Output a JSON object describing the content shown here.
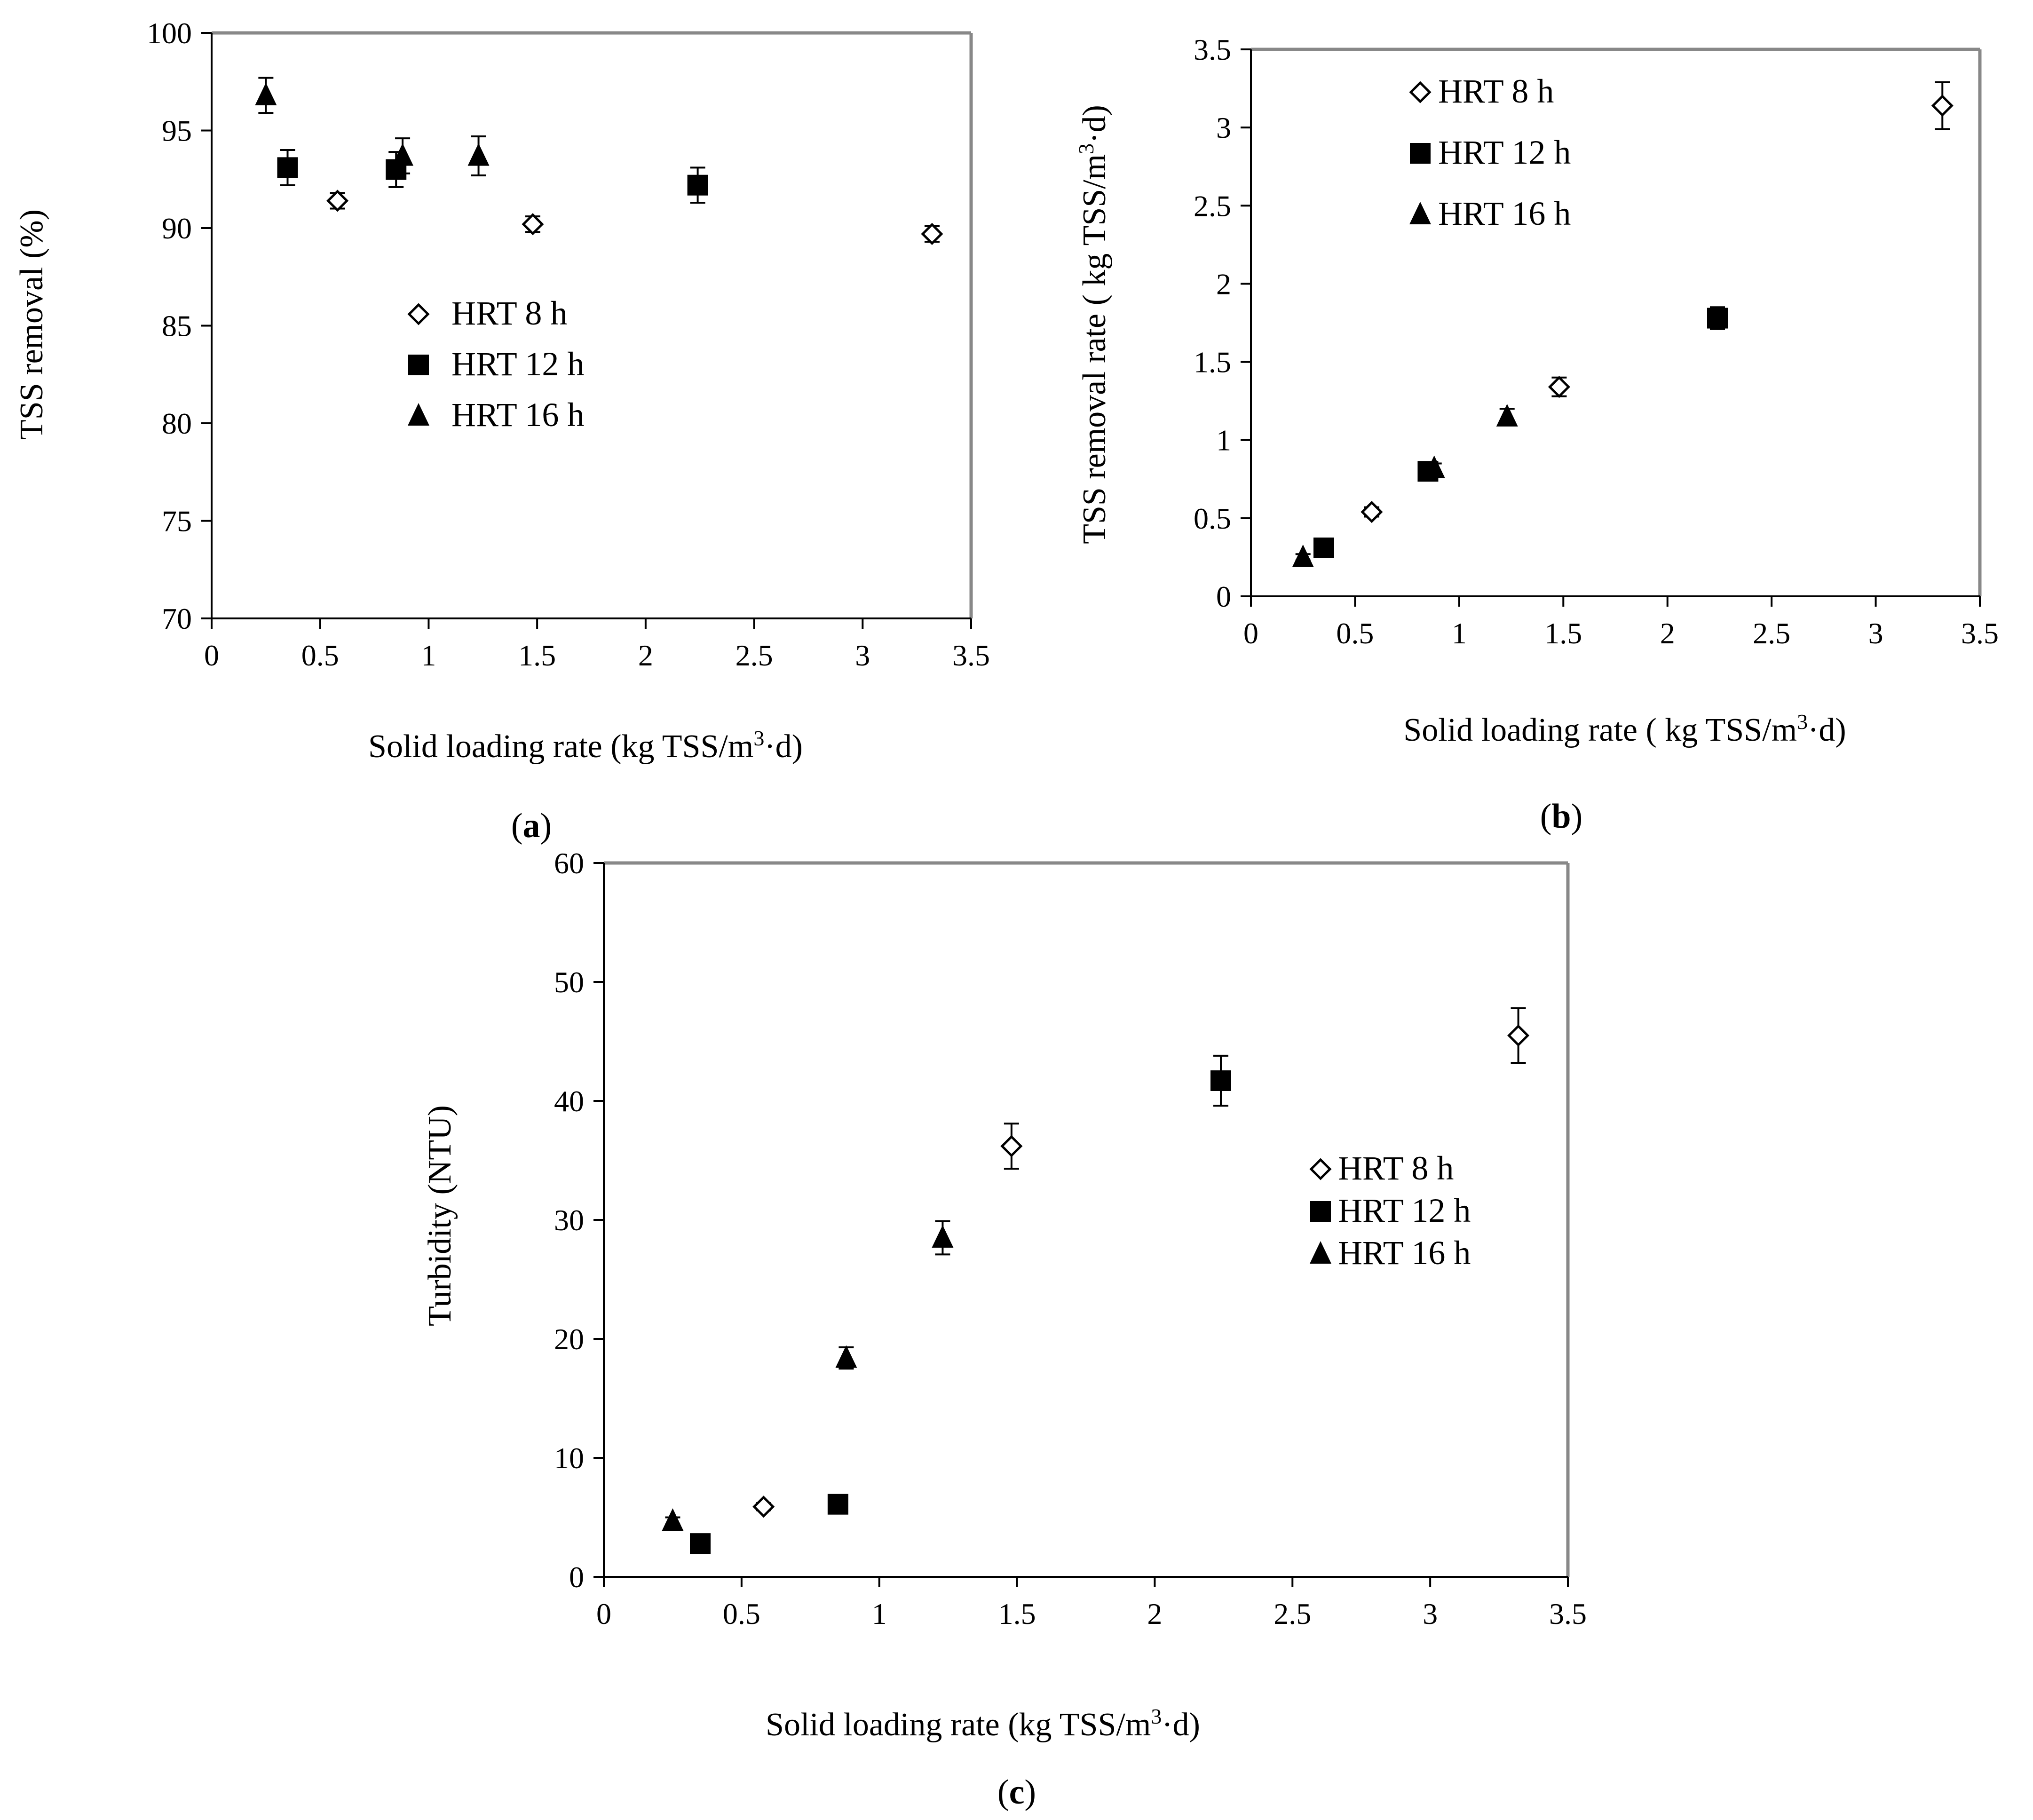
{
  "colors": {
    "frame": "#888888",
    "axis": "#000000",
    "marker": "#000000",
    "background": "#ffffff"
  },
  "chart_data": [
    {
      "id": "a",
      "type": "scatter",
      "panel_label": "a",
      "xlabel_prefix": "Solid loading rate (kg TSS/m",
      "xlabel_sup": "3",
      "xlabel_suffix": "·d)",
      "ylabel": "TSS removal (%)",
      "xlim": [
        0,
        3.5
      ],
      "ylim": [
        70,
        100
      ],
      "xticks": [
        "0",
        "0.5",
        "1",
        "1.5",
        "2",
        "2.5",
        "3",
        "3.5"
      ],
      "yticks": [
        "70",
        "75",
        "80",
        "85",
        "90",
        "95",
        "100"
      ],
      "legend_position": "center",
      "series": [
        {
          "name": "HRT 8 h",
          "marker": "diamond-open",
          "x": [
            0.58,
            1.48,
            3.32
          ],
          "y": [
            91.4,
            90.2,
            89.7
          ],
          "err": [
            0.4,
            0.4,
            0.4
          ]
        },
        {
          "name": "HRT 12 h",
          "marker": "square-filled",
          "x": [
            0.35,
            0.85,
            2.24
          ],
          "y": [
            93.1,
            93.0,
            92.2
          ],
          "err": [
            0.9,
            0.9,
            0.9
          ]
        },
        {
          "name": "HRT 16 h",
          "marker": "triangle-filled",
          "x": [
            0.25,
            0.88,
            1.23
          ],
          "y": [
            96.8,
            93.7,
            93.7
          ],
          "err": [
            0.9,
            0.9,
            1.0
          ]
        }
      ]
    },
    {
      "id": "b",
      "type": "scatter",
      "panel_label": "b",
      "xlabel_prefix": "Solid loading rate ( kg TSS/m",
      "xlabel_sup": "3",
      "xlabel_suffix": "·d)",
      "ylabel_prefix": "TSS removal rate ( kg TSS/m",
      "ylabel_sup": "3",
      "ylabel_suffix": "·d)",
      "xlim": [
        0,
        3.5
      ],
      "ylim": [
        0,
        3.5
      ],
      "xticks": [
        "0",
        "0.5",
        "1",
        "1.5",
        "2",
        "2.5",
        "3",
        "3.5"
      ],
      "yticks": [
        "0",
        "0.5",
        "1",
        "1.5",
        "2",
        "2.5",
        "3",
        "3.5"
      ],
      "legend_position": "top-left",
      "series": [
        {
          "name": "HRT 8 h",
          "marker": "diamond-open",
          "x": [
            0.58,
            1.48,
            3.32
          ],
          "y": [
            0.54,
            1.34,
            3.14
          ],
          "err": [
            0.03,
            0.06,
            0.15
          ]
        },
        {
          "name": "HRT 12 h",
          "marker": "square-filled",
          "x": [
            0.35,
            0.85,
            2.24
          ],
          "y": [
            0.31,
            0.8,
            1.78
          ],
          "err": [
            0.02,
            0.03,
            0.07
          ]
        },
        {
          "name": "HRT 16 h",
          "marker": "triangle-filled",
          "x": [
            0.25,
            0.88,
            1.23
          ],
          "y": [
            0.25,
            0.82,
            1.15
          ],
          "err": [
            0.02,
            0.03,
            0.05
          ]
        }
      ]
    },
    {
      "id": "c",
      "type": "scatter",
      "panel_label": "c",
      "xlabel_prefix": "Solid loading rate (kg TSS/m",
      "xlabel_sup": "3",
      "xlabel_suffix": "·d)",
      "ylabel": "Turbidity (NTU)",
      "xlim": [
        0,
        3.5
      ],
      "ylim": [
        0,
        60
      ],
      "xticks": [
        "0",
        "0.5",
        "1",
        "1.5",
        "2",
        "2.5",
        "3",
        "3.5"
      ],
      "yticks": [
        "0",
        "10",
        "20",
        "30",
        "40",
        "50",
        "60"
      ],
      "legend_position": "center-right",
      "series": [
        {
          "name": "HRT 8 h",
          "marker": "diamond-open",
          "x": [
            0.58,
            1.48,
            3.32
          ],
          "y": [
            5.9,
            36.2,
            45.5
          ],
          "err": [
            0.3,
            1.9,
            2.3
          ]
        },
        {
          "name": "HRT 12 h",
          "marker": "square-filled",
          "x": [
            0.35,
            0.85,
            2.24
          ],
          "y": [
            2.8,
            6.1,
            41.7
          ],
          "err": [
            0.3,
            0.3,
            2.1
          ]
        },
        {
          "name": "HRT 16 h",
          "marker": "triangle-filled",
          "x": [
            0.25,
            0.88,
            1.23
          ],
          "y": [
            4.7,
            18.4,
            28.5
          ],
          "err": [
            0.3,
            0.9,
            1.4
          ]
        }
      ]
    }
  ]
}
